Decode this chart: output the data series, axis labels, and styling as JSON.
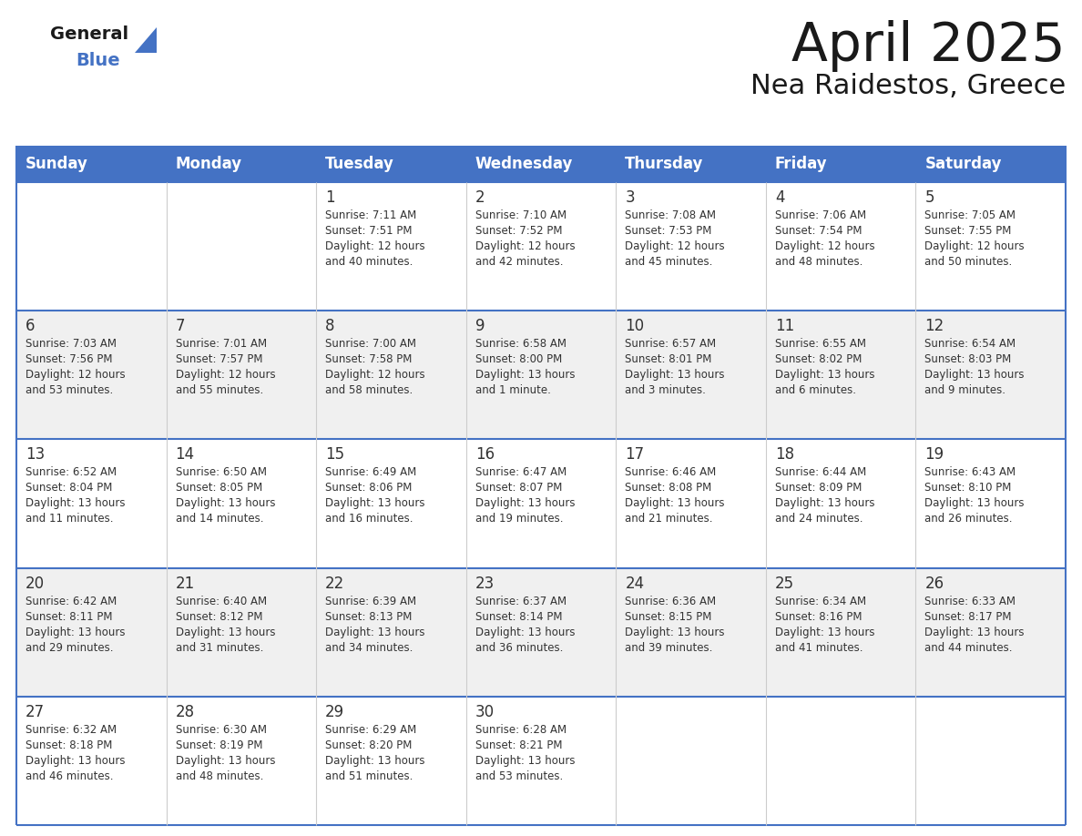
{
  "title": "April 2025",
  "subtitle": "Nea Raidestos, Greece",
  "header_bg_color": "#4472C4",
  "header_text_color": "#FFFFFF",
  "cell_bg_even": "#FFFFFF",
  "cell_bg_odd": "#F0F0F0",
  "border_color": "#4472C4",
  "row_line_color": "#4472C4",
  "text_color": "#333333",
  "day_number_color": "#333333",
  "days_of_week": [
    "Sunday",
    "Monday",
    "Tuesday",
    "Wednesday",
    "Thursday",
    "Friday",
    "Saturday"
  ],
  "calendar_data": [
    [
      {
        "day": "",
        "sunrise": "",
        "sunset": "",
        "daylight": ""
      },
      {
        "day": "",
        "sunrise": "",
        "sunset": "",
        "daylight": ""
      },
      {
        "day": "1",
        "sunrise": "7:11 AM",
        "sunset": "7:51 PM",
        "daylight": "12 hours\nand 40 minutes."
      },
      {
        "day": "2",
        "sunrise": "7:10 AM",
        "sunset": "7:52 PM",
        "daylight": "12 hours\nand 42 minutes."
      },
      {
        "day": "3",
        "sunrise": "7:08 AM",
        "sunset": "7:53 PM",
        "daylight": "12 hours\nand 45 minutes."
      },
      {
        "day": "4",
        "sunrise": "7:06 AM",
        "sunset": "7:54 PM",
        "daylight": "12 hours\nand 48 minutes."
      },
      {
        "day": "5",
        "sunrise": "7:05 AM",
        "sunset": "7:55 PM",
        "daylight": "12 hours\nand 50 minutes."
      }
    ],
    [
      {
        "day": "6",
        "sunrise": "7:03 AM",
        "sunset": "7:56 PM",
        "daylight": "12 hours\nand 53 minutes."
      },
      {
        "day": "7",
        "sunrise": "7:01 AM",
        "sunset": "7:57 PM",
        "daylight": "12 hours\nand 55 minutes."
      },
      {
        "day": "8",
        "sunrise": "7:00 AM",
        "sunset": "7:58 PM",
        "daylight": "12 hours\nand 58 minutes."
      },
      {
        "day": "9",
        "sunrise": "6:58 AM",
        "sunset": "8:00 PM",
        "daylight": "13 hours\nand 1 minute."
      },
      {
        "day": "10",
        "sunrise": "6:57 AM",
        "sunset": "8:01 PM",
        "daylight": "13 hours\nand 3 minutes."
      },
      {
        "day": "11",
        "sunrise": "6:55 AM",
        "sunset": "8:02 PM",
        "daylight": "13 hours\nand 6 minutes."
      },
      {
        "day": "12",
        "sunrise": "6:54 AM",
        "sunset": "8:03 PM",
        "daylight": "13 hours\nand 9 minutes."
      }
    ],
    [
      {
        "day": "13",
        "sunrise": "6:52 AM",
        "sunset": "8:04 PM",
        "daylight": "13 hours\nand 11 minutes."
      },
      {
        "day": "14",
        "sunrise": "6:50 AM",
        "sunset": "8:05 PM",
        "daylight": "13 hours\nand 14 minutes."
      },
      {
        "day": "15",
        "sunrise": "6:49 AM",
        "sunset": "8:06 PM",
        "daylight": "13 hours\nand 16 minutes."
      },
      {
        "day": "16",
        "sunrise": "6:47 AM",
        "sunset": "8:07 PM",
        "daylight": "13 hours\nand 19 minutes."
      },
      {
        "day": "17",
        "sunrise": "6:46 AM",
        "sunset": "8:08 PM",
        "daylight": "13 hours\nand 21 minutes."
      },
      {
        "day": "18",
        "sunrise": "6:44 AM",
        "sunset": "8:09 PM",
        "daylight": "13 hours\nand 24 minutes."
      },
      {
        "day": "19",
        "sunrise": "6:43 AM",
        "sunset": "8:10 PM",
        "daylight": "13 hours\nand 26 minutes."
      }
    ],
    [
      {
        "day": "20",
        "sunrise": "6:42 AM",
        "sunset": "8:11 PM",
        "daylight": "13 hours\nand 29 minutes."
      },
      {
        "day": "21",
        "sunrise": "6:40 AM",
        "sunset": "8:12 PM",
        "daylight": "13 hours\nand 31 minutes."
      },
      {
        "day": "22",
        "sunrise": "6:39 AM",
        "sunset": "8:13 PM",
        "daylight": "13 hours\nand 34 minutes."
      },
      {
        "day": "23",
        "sunrise": "6:37 AM",
        "sunset": "8:14 PM",
        "daylight": "13 hours\nand 36 minutes."
      },
      {
        "day": "24",
        "sunrise": "6:36 AM",
        "sunset": "8:15 PM",
        "daylight": "13 hours\nand 39 minutes."
      },
      {
        "day": "25",
        "sunrise": "6:34 AM",
        "sunset": "8:16 PM",
        "daylight": "13 hours\nand 41 minutes."
      },
      {
        "day": "26",
        "sunrise": "6:33 AM",
        "sunset": "8:17 PM",
        "daylight": "13 hours\nand 44 minutes."
      }
    ],
    [
      {
        "day": "27",
        "sunrise": "6:32 AM",
        "sunset": "8:18 PM",
        "daylight": "13 hours\nand 46 minutes."
      },
      {
        "day": "28",
        "sunrise": "6:30 AM",
        "sunset": "8:19 PM",
        "daylight": "13 hours\nand 48 minutes."
      },
      {
        "day": "29",
        "sunrise": "6:29 AM",
        "sunset": "8:20 PM",
        "daylight": "13 hours\nand 51 minutes."
      },
      {
        "day": "30",
        "sunrise": "6:28 AM",
        "sunset": "8:21 PM",
        "daylight": "13 hours\nand 53 minutes."
      },
      {
        "day": "",
        "sunrise": "",
        "sunset": "",
        "daylight": ""
      },
      {
        "day": "",
        "sunrise": "",
        "sunset": "",
        "daylight": ""
      },
      {
        "day": "",
        "sunrise": "",
        "sunset": "",
        "daylight": ""
      }
    ]
  ],
  "logo_general_color": "#1a1a1a",
  "logo_blue_color": "#4472C4",
  "logo_triangle_color": "#4472C4",
  "title_color": "#1a1a1a",
  "subtitle_color": "#1a1a1a"
}
